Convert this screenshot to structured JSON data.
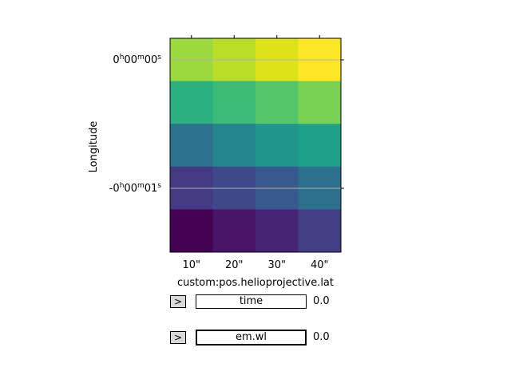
{
  "chart_data": {
    "type": "heatmap",
    "xlabel": "custom:pos.helioprojective.lat",
    "ylabel": "Longitude",
    "x_tick_labels": [
      "10\"",
      "20\"",
      "30\"",
      "40\""
    ],
    "y_tick_labels": [
      "0h00m00s",
      "-0h00m01s"
    ],
    "y_tick_labels_display": [
      {
        "parts": [
          [
            "0",
            ""
          ],
          [
            "h",
            "sup"
          ],
          [
            "00",
            ""
          ],
          [
            "m",
            "sup"
          ],
          [
            "00",
            ""
          ],
          [
            "s",
            "sup"
          ]
        ]
      },
      {
        "parts": [
          [
            "-0",
            ""
          ],
          [
            "h",
            "sup"
          ],
          [
            "00",
            ""
          ],
          [
            "m",
            "sup"
          ],
          [
            "01",
            ""
          ],
          [
            "s",
            "sup"
          ]
        ]
      }
    ],
    "colormap": "viridis",
    "grid": true,
    "rows_top_to_bottom": [
      [
        0.62,
        0.7,
        0.8,
        0.95
      ],
      [
        0.57,
        0.6,
        0.65,
        0.72
      ],
      [
        0.4,
        0.44,
        0.48,
        0.52
      ],
      [
        0.19,
        0.22,
        0.27,
        0.35
      ],
      [
        0.0,
        0.07,
        0.11,
        0.17
      ]
    ],
    "cell_colors_top_to_bottom": [
      [
        "#9bd93c",
        "#bade28",
        "#dde318",
        "#fde725"
      ],
      [
        "#2ab07f",
        "#3bbb75",
        "#54c568",
        "#77d153"
      ],
      [
        "#2c728e",
        "#25858e",
        "#1f958b",
        "#1fa088"
      ],
      [
        "#443a83",
        "#3e4989",
        "#38598c",
        "#2d708e"
      ],
      [
        "#440154",
        "#481467",
        "#482475",
        "#433e85"
      ]
    ]
  },
  "sliders": [
    {
      "label": "time",
      "value": "0.0",
      "button": ">"
    },
    {
      "label": "em.wl",
      "value": "0.0",
      "button": ">"
    }
  ]
}
